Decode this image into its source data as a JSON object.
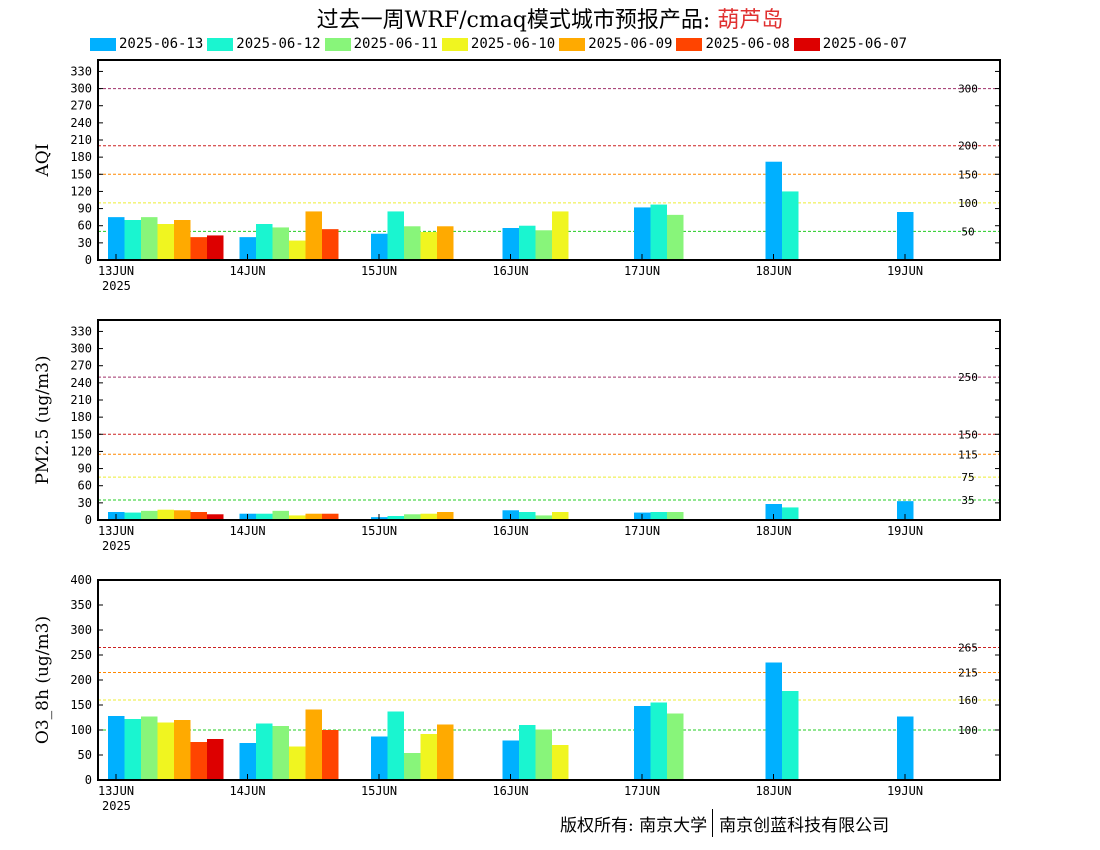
{
  "title": {
    "text": "过去一周WRF/cmaq模式城市预报产品: ",
    "city": "葫芦岛"
  },
  "footer": {
    "left": "版权所有: 南京大学",
    "right": "南京创蓝科技有限公司"
  },
  "legend": [
    {
      "label": "2025-06-13",
      "color": "#00b0ff"
    },
    {
      "label": "2025-06-12",
      "color": "#1af5d0"
    },
    {
      "label": "2025-06-11",
      "color": "#88f57a"
    },
    {
      "label": "2025-06-10",
      "color": "#f0f520"
    },
    {
      "label": "2025-06-09",
      "color": "#ffaa00"
    },
    {
      "label": "2025-06-08",
      "color": "#ff4400"
    },
    {
      "label": "2025-06-07",
      "color": "#dd0000"
    }
  ],
  "chart_data": [
    {
      "type": "bar",
      "ylabel": "AQI",
      "ylim": [
        0,
        350
      ],
      "yticks": [
        0,
        30,
        60,
        90,
        120,
        150,
        180,
        210,
        240,
        270,
        300,
        330
      ],
      "x_tick_labels": [
        "13JUN",
        "14JUN",
        "15JUN",
        "16JUN",
        "17JUN",
        "18JUN",
        "19JUN"
      ],
      "x_sub_label": "2025",
      "thresholds": [
        {
          "value": 300,
          "label": "300",
          "color": "#a0306a"
        },
        {
          "value": 200,
          "label": "200",
          "color": "#cc2222"
        },
        {
          "value": 150,
          "label": "150",
          "color": "#ff8800"
        },
        {
          "value": 100,
          "label": "100",
          "color": "#eeee33"
        },
        {
          "value": 50,
          "label": "50",
          "color": "#22cc22"
        }
      ],
      "series": [
        {
          "name": "2025-06-13",
          "values": [
            75,
            40,
            46,
            56,
            92,
            172,
            84
          ]
        },
        {
          "name": "2025-06-12",
          "values": [
            70,
            63,
            85,
            60,
            97,
            120,
            null
          ]
        },
        {
          "name": "2025-06-11",
          "values": [
            75,
            57,
            59,
            52,
            79,
            null,
            null
          ]
        },
        {
          "name": "2025-06-10",
          "values": [
            63,
            34,
            49,
            85,
            null,
            null,
            null
          ]
        },
        {
          "name": "2025-06-09",
          "values": [
            70,
            85,
            59,
            null,
            null,
            null,
            null
          ]
        },
        {
          "name": "2025-06-08",
          "values": [
            40,
            54,
            null,
            null,
            null,
            null,
            null
          ]
        },
        {
          "name": "2025-06-07",
          "values": [
            43,
            null,
            null,
            null,
            null,
            null,
            null
          ]
        }
      ]
    },
    {
      "type": "bar",
      "ylabel": "PM2.5 (ug/m3)",
      "ylim": [
        0,
        350
      ],
      "yticks": [
        0,
        30,
        60,
        90,
        120,
        150,
        180,
        210,
        240,
        270,
        300,
        330
      ],
      "x_tick_labels": [
        "13JUN",
        "14JUN",
        "15JUN",
        "16JUN",
        "17JUN",
        "18JUN",
        "19JUN"
      ],
      "x_sub_label": "2025",
      "thresholds": [
        {
          "value": 250,
          "label": "250",
          "color": "#a0306a"
        },
        {
          "value": 150,
          "label": "150",
          "color": "#cc2222"
        },
        {
          "value": 115,
          "label": "115",
          "color": "#ff8800"
        },
        {
          "value": 75,
          "label": "75",
          "color": "#eeee33"
        },
        {
          "value": 35,
          "label": "35",
          "color": "#22cc22"
        }
      ],
      "series": [
        {
          "name": "2025-06-13",
          "values": [
            14,
            11,
            5,
            17,
            13,
            28,
            33
          ]
        },
        {
          "name": "2025-06-12",
          "values": [
            13,
            11,
            7,
            14,
            14,
            22,
            null
          ]
        },
        {
          "name": "2025-06-11",
          "values": [
            16,
            16,
            10,
            8,
            14,
            null,
            null
          ]
        },
        {
          "name": "2025-06-10",
          "values": [
            18,
            8,
            11,
            14,
            null,
            null,
            null
          ]
        },
        {
          "name": "2025-06-09",
          "values": [
            17,
            11,
            14,
            null,
            null,
            null,
            null
          ]
        },
        {
          "name": "2025-06-08",
          "values": [
            14,
            11,
            null,
            null,
            null,
            null,
            null
          ]
        },
        {
          "name": "2025-06-07",
          "values": [
            10,
            null,
            null,
            null,
            null,
            null,
            null
          ]
        }
      ]
    },
    {
      "type": "bar",
      "ylabel": "O3_8h (ug/m3)",
      "ylim": [
        0,
        400
      ],
      "yticks": [
        0,
        50,
        100,
        150,
        200,
        250,
        300,
        350,
        400
      ],
      "x_tick_labels": [
        "13JUN",
        "14JUN",
        "15JUN",
        "16JUN",
        "17JUN",
        "18JUN",
        "19JUN"
      ],
      "x_sub_label": "2025",
      "thresholds": [
        {
          "value": 265,
          "label": "265",
          "color": "#cc2222"
        },
        {
          "value": 215,
          "label": "215",
          "color": "#ff8800"
        },
        {
          "value": 160,
          "label": "160",
          "color": "#eeee33"
        },
        {
          "value": 100,
          "label": "100",
          "color": "#22cc22"
        }
      ],
      "series": [
        {
          "name": "2025-06-13",
          "values": [
            128,
            74,
            87,
            79,
            148,
            235,
            127
          ]
        },
        {
          "name": "2025-06-12",
          "values": [
            122,
            113,
            137,
            110,
            155,
            178,
            null
          ]
        },
        {
          "name": "2025-06-11",
          "values": [
            127,
            108,
            54,
            101,
            133,
            null,
            null
          ]
        },
        {
          "name": "2025-06-10",
          "values": [
            115,
            67,
            92,
            70,
            null,
            null,
            null
          ]
        },
        {
          "name": "2025-06-09",
          "values": [
            120,
            141,
            111,
            null,
            null,
            null,
            null
          ]
        },
        {
          "name": "2025-06-08",
          "values": [
            76,
            100,
            null,
            null,
            null,
            null,
            null
          ]
        },
        {
          "name": "2025-06-07",
          "values": [
            82,
            null,
            null,
            null,
            null,
            null,
            null
          ]
        }
      ]
    }
  ]
}
